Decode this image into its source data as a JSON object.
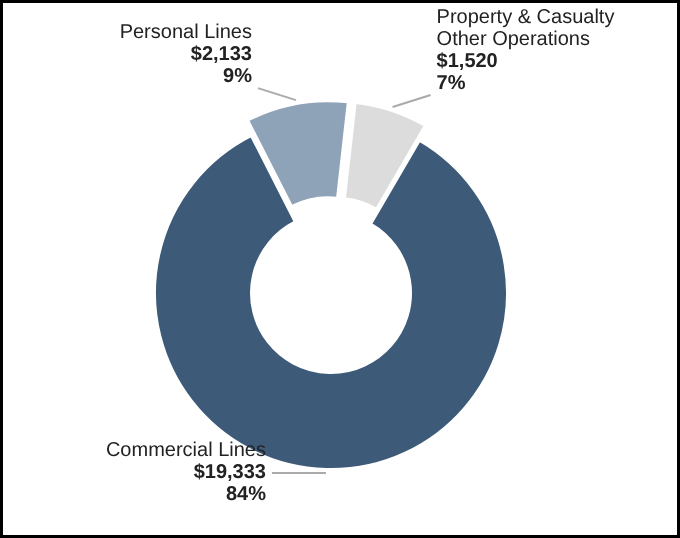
{
  "chart_data": {
    "type": "donut",
    "categories": [
      "Personal Lines",
      "Property & Casualty Other Operations",
      "Commercial Lines"
    ],
    "values": [
      2133,
      1520,
      19333
    ],
    "colors": [
      "#8fa3b8",
      "#dcdcdc",
      "#3d5a78"
    ],
    "value_labels": [
      "$2,133\n9%",
      "$1,520\n7%",
      "$19,333\n84%"
    ]
  }
}
